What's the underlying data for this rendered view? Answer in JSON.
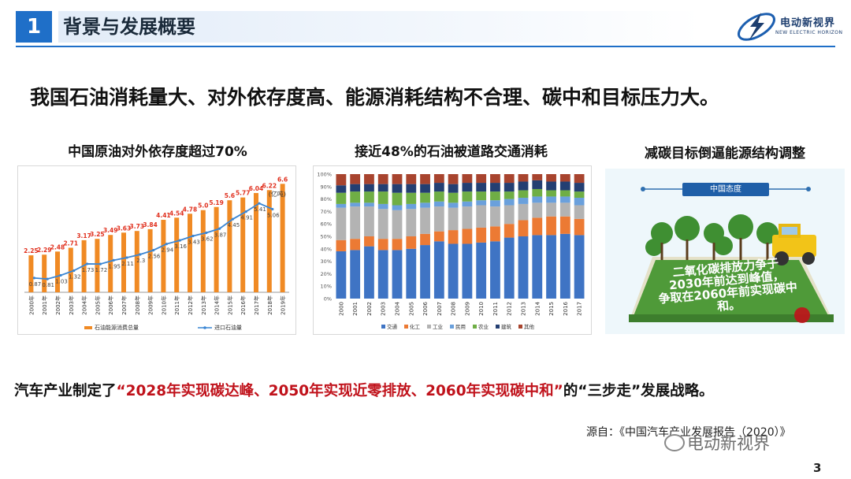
{
  "header": {
    "number": "1",
    "title": "背景与发展概要",
    "logo_text": "电动新视界",
    "logo_sub": "NEW ELECTRIC HORIZON"
  },
  "headline": "我国石油消耗量大、对外依存度高、能源消耗结构不合理、碳中和目标压力大。",
  "panels": {
    "p1_title": "中国原油对外依存度超过70%",
    "p2_title": "接近48%的石油被道路交通消耗",
    "p3_title": "减碳目标倒逼能源结构调整",
    "p3_banner": "中国态度",
    "p3_text1": "二氧化碳排放力争于",
    "p3_text2": "2030年前达到峰值，",
    "p3_text3": "争取在2060年前实现碳中和。"
  },
  "strategy": {
    "part1": "汽车产业制定了",
    "part2": "“2028年实现碳达峰、2050年实现近零排放、2060年实现碳中和”",
    "part3": "的“三步走”发展战略。"
  },
  "source": "源自：《中国汽车产业发展报告（2020）》",
  "watermark": "电动新视界",
  "page_number": "3",
  "colors": {
    "accent": "#1f6fc8",
    "bar_orange": "#f08a24",
    "line_blue": "#3a86d4",
    "red_text": "#c0121b"
  },
  "chart_data": [
    {
      "type": "bar",
      "title": "中国原油对外依存度超过70%",
      "unit_label": "(亿吨)",
      "categories": [
        "2000年",
        "2001年",
        "2002年",
        "2003年",
        "2004年",
        "2005年",
        "2006年",
        "2007年",
        "2008年",
        "2009年",
        "2010年",
        "2011年",
        "2012年",
        "2013年",
        "2014年",
        "2015年",
        "2016年",
        "2017年",
        "2018年",
        "2019年"
      ],
      "series": [
        {
          "name": "石油能源消费总量",
          "kind": "bar",
          "color": "#f08a24",
          "values": [
            2.25,
            2.29,
            2.48,
            2.71,
            3.17,
            3.25,
            3.49,
            3.63,
            3.73,
            3.84,
            4.41,
            4.54,
            4.78,
            5.0,
            5.19,
            5.6,
            5.77,
            6.04,
            6.22,
            6.6
          ]
        },
        {
          "name": "进口石油量",
          "kind": "line",
          "color": "#3a86d4",
          "values": [
            0.87,
            0.81,
            1.03,
            1.32,
            1.73,
            1.72,
            1.95,
            2.11,
            2.3,
            2.56,
            2.94,
            3.16,
            3.43,
            3.62,
            3.87,
            4.45,
            4.91,
            5.41,
            5.06,
            null
          ]
        }
      ],
      "ylim": [
        0,
        7
      ]
    },
    {
      "type": "bar",
      "title": "接近48%的石油被道路交通消耗",
      "stacked_percent": true,
      "categories": [
        "2000",
        "2001",
        "2002",
        "2003",
        "2004",
        "2005",
        "2006",
        "2007",
        "2008",
        "2009",
        "2010",
        "2011",
        "2012",
        "2013",
        "2014",
        "2015",
        "2016",
        "2017"
      ],
      "y_ticks": [
        "0%",
        "10%",
        "20%",
        "30%",
        "40%",
        "50%",
        "60%",
        "70%",
        "80%",
        "90%",
        "100%"
      ],
      "series": [
        {
          "name": "交通",
          "color": "#3f74c4",
          "values": [
            38,
            39,
            42,
            39,
            39,
            40,
            43,
            46,
            44,
            44,
            45,
            46,
            49,
            50,
            51,
            51,
            52,
            51
          ]
        },
        {
          "name": "化工",
          "color": "#ec7a34",
          "values": [
            9,
            9,
            8,
            9,
            9,
            10,
            9,
            8,
            11,
            12,
            12,
            12,
            11,
            13,
            14,
            15,
            14,
            13
          ]
        },
        {
          "name": "工业",
          "color": "#b3b3b3",
          "values": [
            26,
            26,
            24,
            24,
            23,
            22,
            21,
            20,
            18,
            18,
            18,
            16,
            15,
            13,
            12,
            11,
            11,
            11
          ]
        },
        {
          "name": "民用",
          "color": "#6aa0dc",
          "values": [
            3,
            3,
            3,
            4,
            4,
            4,
            4,
            4,
            4,
            4,
            4,
            5,
            5,
            5,
            5,
            5,
            5,
            6
          ]
        },
        {
          "name": "农业",
          "color": "#6fae45",
          "values": [
            9,
            9,
            9,
            10,
            10,
            9,
            8,
            8,
            8,
            8,
            7,
            7,
            6,
            6,
            6,
            5,
            5,
            5
          ]
        },
        {
          "name": "建筑",
          "color": "#243f72",
          "values": [
            6,
            6,
            6,
            6,
            7,
            7,
            7,
            7,
            7,
            7,
            7,
            7,
            7,
            7,
            7,
            7,
            7,
            7
          ]
        },
        {
          "name": "其他",
          "color": "#a8442e",
          "values": [
            9,
            8,
            8,
            8,
            8,
            8,
            8,
            7,
            8,
            7,
            7,
            7,
            7,
            6,
            5,
            6,
            6,
            7
          ]
        }
      ]
    }
  ]
}
